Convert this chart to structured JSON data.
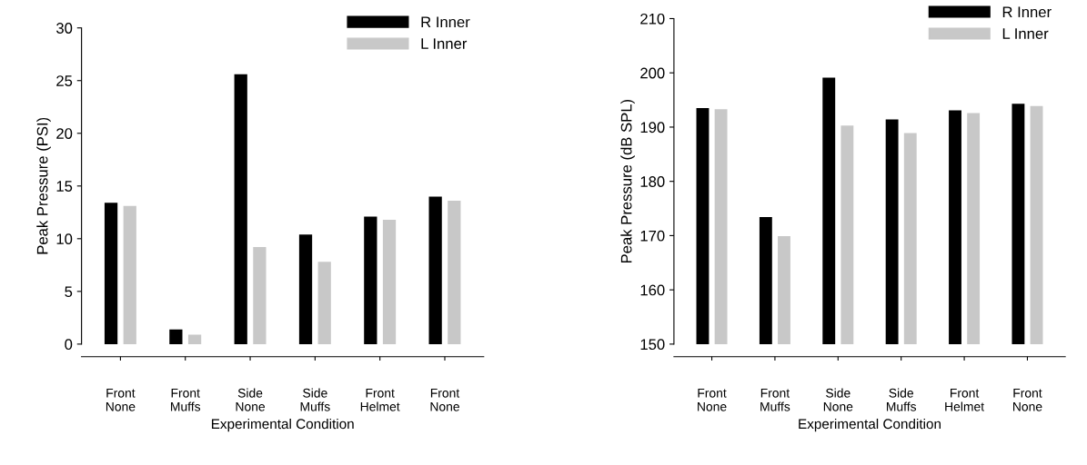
{
  "chart_data": [
    {
      "type": "bar",
      "xlabel": "Experimental Condition",
      "ylabel": "Peak Pressure (PSI)",
      "categories": [
        "Front\nNone",
        "Front\nMuffs",
        "Side\nNone",
        "Side\nMuffs",
        "Front\nHelmet",
        "Front\nNone"
      ],
      "series": [
        {
          "name": "R Inner",
          "color": "#000000",
          "values": [
            13.4,
            1.4,
            25.6,
            10.4,
            12.1,
            14.0
          ]
        },
        {
          "name": "L Inner",
          "color": "#c8c8c8",
          "values": [
            13.1,
            0.9,
            9.2,
            7.8,
            11.8,
            13.6
          ]
        }
      ],
      "ylim": [
        0,
        30
      ],
      "yticks": [
        0,
        5,
        10,
        15,
        20,
        25,
        30
      ],
      "legend": "top right"
    },
    {
      "type": "bar",
      "xlabel": "Experimental Condition",
      "ylabel": "Peak Pressure (dB SPL)",
      "categories": [
        "Front\nNone",
        "Front\nMuffs",
        "Side\nNone",
        "Side\nMuffs",
        "Front\nHelmet",
        "Front\nNone"
      ],
      "series": [
        {
          "name": "R Inner",
          "color": "#000000",
          "values": [
            193.5,
            173.4,
            199.1,
            191.4,
            193.1,
            194.3
          ]
        },
        {
          "name": "L Inner",
          "color": "#c8c8c8",
          "values": [
            193.3,
            169.9,
            190.3,
            188.9,
            192.6,
            193.9
          ]
        }
      ],
      "ylim": [
        150,
        210
      ],
      "yticks": [
        150,
        160,
        170,
        180,
        190,
        200,
        210
      ],
      "legend": "top right"
    }
  ]
}
